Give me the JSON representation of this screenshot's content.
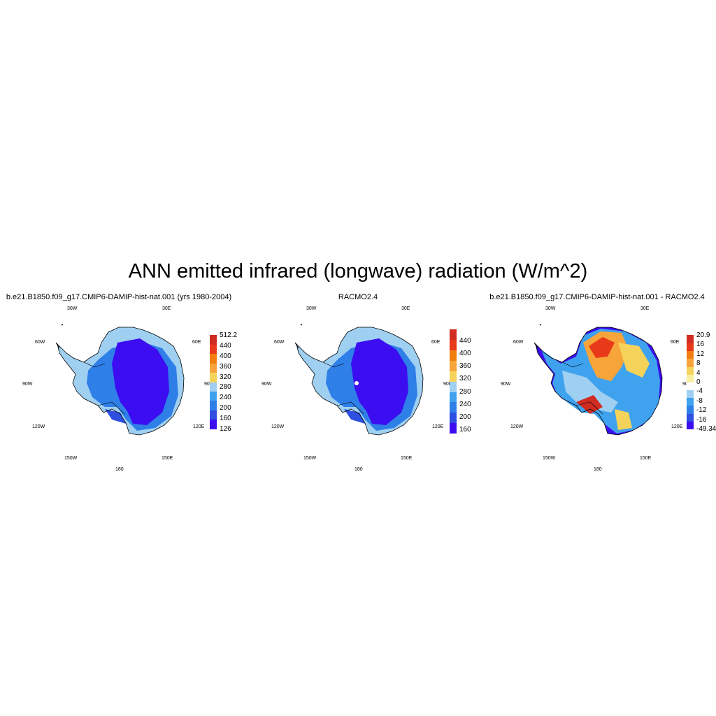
{
  "main_title": "ANN emitted infrared (longwave) radiation (W/m^2)",
  "lon_labels": [
    "30W",
    "30E",
    "60W",
    "60E",
    "90W",
    "90E",
    "120W",
    "120E",
    "150W",
    "150E",
    "180"
  ],
  "panels": [
    {
      "title": "b.e21.B1850.f09_g17.CMIP6-DAMIP-hist-nat.001 (yrs 1980-2004)",
      "colorbar": {
        "colors": [
          "#3b0df0",
          "#2f4fe0",
          "#2f7fe8",
          "#3fa2ee",
          "#9fd0f2",
          "#f5d35a",
          "#f7a43a",
          "#f27e10",
          "#e83a1a",
          "#d02c22"
        ],
        "labels": [
          "512.2",
          "440",
          "400",
          "360",
          "320",
          "280",
          "240",
          "200",
          "160",
          "126"
        ]
      }
    },
    {
      "title": "RACMO2.4",
      "colorbar": {
        "colors": [
          "#3b0df0",
          "#2f4fe0",
          "#2f7fe8",
          "#3fa2ee",
          "#9fd0f2",
          "#f5d35a",
          "#f7a43a",
          "#f27e10",
          "#e83a1a",
          "#d02c22"
        ],
        "labels": [
          "440",
          "400",
          "360",
          "320",
          "280",
          "240",
          "200",
          "160"
        ]
      }
    },
    {
      "title": "b.e21.B1850.f09_g17.CMIP6-DAMIP-hist-nat.001 - RACMO2.4",
      "colorbar": {
        "colors": [
          "#3b0df0",
          "#2f4fe0",
          "#2f7fe8",
          "#3fa2ee",
          "#9fd0f2",
          "#ffffff",
          "#f8f0a0",
          "#f5d35a",
          "#f7a43a",
          "#f27e10",
          "#e83a1a",
          "#d02c22"
        ],
        "labels": [
          "20.9",
          "16",
          "12",
          "8",
          "4",
          "0",
          "-4",
          "-8",
          "-12",
          "-16",
          "-49.34"
        ]
      }
    }
  ]
}
